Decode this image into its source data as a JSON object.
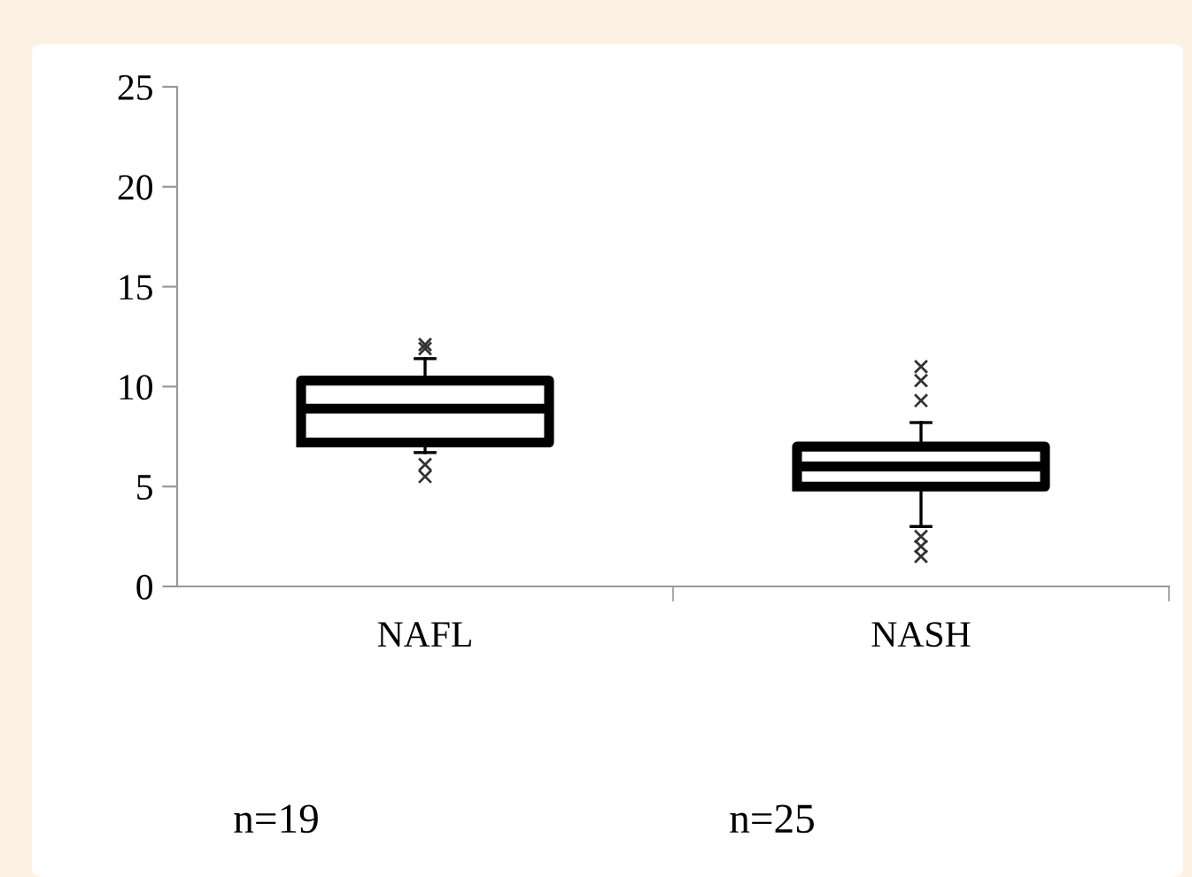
{
  "chart_data": {
    "type": "box",
    "categories": [
      "NAFL",
      "NASH"
    ],
    "boxes": [
      {
        "low": 6.7,
        "q1": 7.2,
        "median": 8.9,
        "q3": 10.3,
        "high": 11.4,
        "outliers": [
          12.1,
          11.9,
          6.1,
          5.5
        ]
      },
      {
        "low": 3.0,
        "q1": 5.0,
        "median": 6.0,
        "q3": 7.0,
        "high": 8.2,
        "outliers": [
          11.0,
          10.3,
          9.3,
          2.5,
          2.0,
          1.5
        ]
      }
    ],
    "ylim": [
      0,
      25
    ],
    "yticks": [
      0,
      5,
      10,
      15,
      20,
      25
    ],
    "grid": false,
    "marker": "cross",
    "annotations": [
      "n=19",
      "n=25"
    ]
  }
}
